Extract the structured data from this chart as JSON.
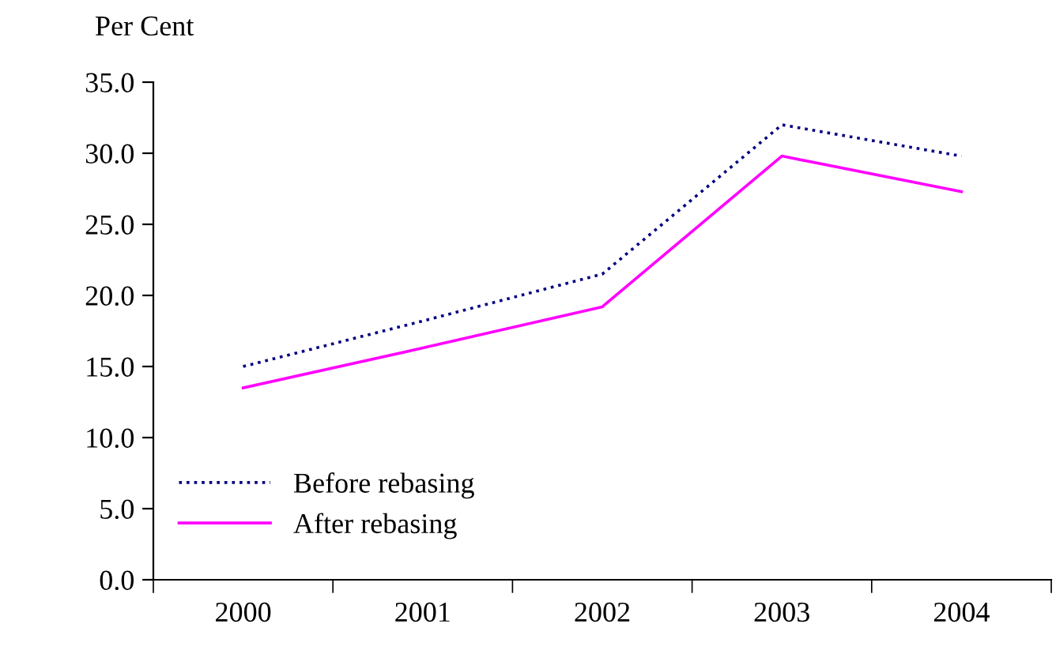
{
  "chart_data": {
    "type": "line",
    "ylabel": "Per Cent",
    "categories": [
      "2000",
      "2001",
      "2002",
      "2003",
      "2004"
    ],
    "series": [
      {
        "name": "Before rebasing",
        "color": "#000080",
        "line_style": "dotted",
        "values": [
          15.0,
          18.2,
          21.5,
          32.0,
          29.8
        ]
      },
      {
        "name": "After rebasing",
        "color": "#ff00ff",
        "line_style": "solid",
        "values": [
          13.5,
          16.3,
          19.2,
          29.8,
          27.3
        ]
      }
    ],
    "ylim": [
      0,
      35
    ],
    "yticks": [
      {
        "value": 0,
        "label": "0.0"
      },
      {
        "value": 5,
        "label": "5.0"
      },
      {
        "value": 10,
        "label": "10.0"
      },
      {
        "value": 15,
        "label": "15.0"
      },
      {
        "value": 20,
        "label": "20.0"
      },
      {
        "value": 25,
        "label": "25.0"
      },
      {
        "value": 30,
        "label": "30.0"
      },
      {
        "value": 35,
        "label": "35.0"
      }
    ],
    "grid": false,
    "legend": "bottom left",
    "marker": "none"
  }
}
